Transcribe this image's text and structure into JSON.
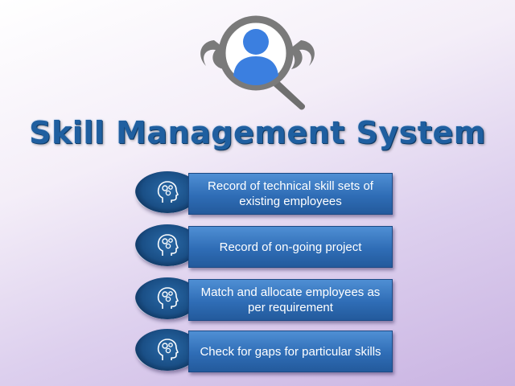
{
  "title": "Skill Management System",
  "colors": {
    "title": "#1f5fa0",
    "bar": "#2f6db6",
    "circle": "#1a4f86",
    "logo_gray": "#7a7a7a",
    "logo_person": "#3b7fe0"
  },
  "icons": {
    "logo": "person-search-icon",
    "item": "head-gears-icon"
  },
  "items": [
    {
      "label": "Record of technical skill sets of existing     employees"
    },
    {
      "label": "Record of on-going project"
    },
    {
      "label": "Match and allocate employees as per requirement"
    },
    {
      "label": "Check for gaps for particular skills"
    }
  ]
}
